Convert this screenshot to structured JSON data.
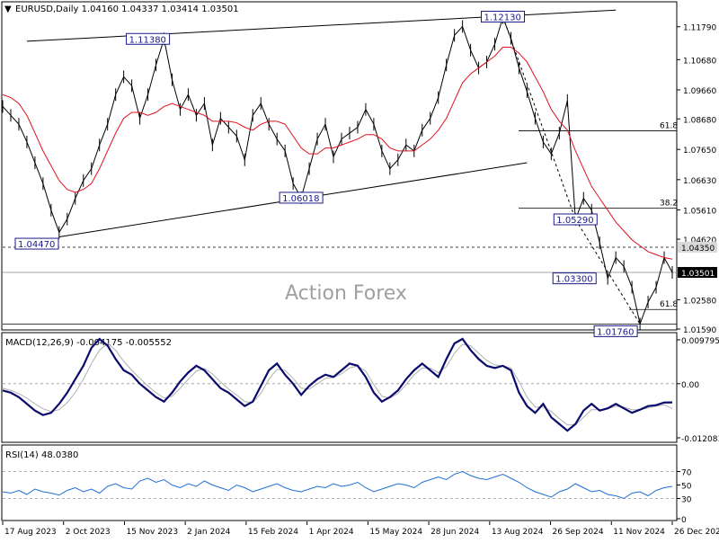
{
  "header": {
    "symbol_line": "EURUSD,Daily  1.04160 1.04337 1.03414 1.03501",
    "watermark": "Action Forex"
  },
  "colors": {
    "price": "#000000",
    "ma": "#e0101c",
    "macd_main": "#0b0b6e",
    "macd_signal": "#b0b0b0",
    "rsi": "#1f6fd6",
    "grid": "#9a9a9a"
  },
  "chart_data": [
    {
      "type": "line",
      "panel": "price",
      "title": "EURUSD,Daily  1.04160 1.04337 1.03414 1.03501",
      "ylim": [
        1.0159,
        1.1251
      ],
      "y_ticks": [
        1.1179,
        1.1068,
        1.0966,
        1.0868,
        1.0765,
        1.0663,
        1.0561,
        1.0462,
        1.0435,
        1.03501,
        1.0258,
        1.0159
      ],
      "y_tick_labels": [
        "1.11790",
        "1.10680",
        "1.09660",
        "1.08680",
        "1.07650",
        "1.06630",
        "1.05610",
        "1.04620",
        "1.04350",
        "1.03501",
        "1.02580",
        "1.01590"
      ],
      "x_labels": [
        "17 Aug 2023",
        "2 Oct 2023",
        "15 Nov 2023",
        "2 Jan 2024",
        "15 Feb 2024",
        "1 Apr 2024",
        "15 May 2024",
        "28 Jun 2024",
        "13 Aug 2024",
        "26 Sep 2024",
        "11 Nov 2024",
        "26 Dec 2024"
      ],
      "series": [
        {
          "name": "",
          "values": [
            1.091,
            1.088,
            1.085,
            1.079,
            1.072,
            1.065,
            1.056,
            1.0485,
            1.053,
            1.06,
            1.066,
            1.07,
            1.078,
            1.085,
            1.095,
            1.101,
            1.098,
            1.087,
            1.095,
            1.105,
            1.1138,
            1.1,
            1.09,
            1.095,
            1.088,
            1.092,
            1.078,
            1.087,
            1.084,
            1.081,
            1.073,
            1.088,
            1.092,
            1.085,
            1.08,
            1.076,
            1.065,
            1.0602,
            1.07,
            1.08,
            1.085,
            1.074,
            1.08,
            1.082,
            1.084,
            1.09,
            1.085,
            1.076,
            1.07,
            1.073,
            1.078,
            1.076,
            1.083,
            1.087,
            1.094,
            1.105,
            1.115,
            1.118,
            1.11,
            1.104,
            1.106,
            1.112,
            1.121,
            1.114,
            1.104,
            1.096,
            1.087,
            1.079,
            1.075,
            1.082,
            1.093,
            1.0529,
            1.06,
            1.056,
            1.045,
            1.033,
            1.04,
            1.037,
            1.03,
            1.0176,
            1.025,
            1.03,
            1.04,
            1.03501
          ]
        },
        {
          "name": "",
          "values": [
            1.095,
            1.094,
            1.092,
            1.088,
            1.082,
            1.076,
            1.071,
            1.066,
            1.063,
            1.062,
            1.063,
            1.065,
            1.07,
            1.076,
            1.082,
            1.087,
            1.089,
            1.089,
            1.088,
            1.089,
            1.091,
            1.092,
            1.091,
            1.09,
            1.089,
            1.088,
            1.086,
            1.086,
            1.086,
            1.0855,
            1.084,
            1.083,
            1.085,
            1.086,
            1.086,
            1.085,
            1.081,
            1.077,
            1.075,
            1.075,
            1.077,
            1.077,
            1.078,
            1.079,
            1.08,
            1.0815,
            1.0815,
            1.08,
            1.077,
            1.076,
            1.076,
            1.076,
            1.078,
            1.08,
            1.083,
            1.087,
            1.093,
            1.099,
            1.102,
            1.104,
            1.106,
            1.108,
            1.111,
            1.111,
            1.109,
            1.106,
            1.101,
            1.096,
            1.09,
            1.086,
            1.083,
            1.076,
            1.07,
            1.064,
            1.06,
            1.056,
            1.052,
            1.049,
            1.046,
            1.044,
            1.042,
            1.041,
            1.04,
            1.0395
          ]
        }
      ],
      "trendlines": [
        {
          "from": [
            3,
            1.113
          ],
          "to": [
            76,
            1.1235
          ]
        },
        {
          "from": [
            7,
            1.047
          ],
          "to": [
            65,
            1.072
          ]
        }
      ],
      "zigzag": [
        [
          62,
          1.1213
        ],
        [
          71,
          1.0529
        ],
        [
          79,
          1.0176
        ]
      ],
      "levels": [
        {
          "value": 1.0435,
          "style": "dashed"
        },
        {
          "value": 1.03501,
          "style": "solid"
        },
        {
          "value": 1.0176,
          "style": "solid"
        }
      ],
      "fibs": [
        {
          "label": "61.8",
          "value": 1.0828
        },
        {
          "label": "38.2",
          "value": 1.0567
        },
        {
          "label": "61.8",
          "value": 1.0225
        }
      ],
      "callouts": [
        {
          "label": "1.11380",
          "x": 18,
          "y": 1.1138
        },
        {
          "label": "1.12130",
          "x": 62,
          "y": 1.1213
        },
        {
          "label": "1.06018",
          "x": 37,
          "y": 1.0602
        },
        {
          "label": "1.04470",
          "x": 7,
          "y": 1.0447
        },
        {
          "label": "1.05290",
          "x": 71,
          "y": 1.0529
        },
        {
          "label": "1.03300",
          "x": 74,
          "y": 1.033
        },
        {
          "label": "1.01760",
          "x": 79,
          "y": 1.0176
        }
      ],
      "price_tags": [
        {
          "label": "1.04350",
          "value": 1.0435
        },
        {
          "label": "1.03501",
          "value": 1.03501
        }
      ]
    },
    {
      "type": "line",
      "panel": "macd",
      "title": "MACD(12,26,9) -0.004175 -0.005552",
      "ylim": [
        -0.012081,
        0.009795
      ],
      "y_ticks": [
        0.009795,
        0.0,
        -0.012081
      ],
      "y_tick_labels": [
        "0.009795",
        "0.00",
        "-0.012081"
      ],
      "series": [
        {
          "name": "",
          "values": [
            -0.0015,
            -0.002,
            -0.003,
            -0.0045,
            -0.006,
            -0.007,
            -0.0065,
            -0.0045,
            -0.002,
            0.001,
            0.004,
            0.008,
            0.01,
            0.0085,
            0.0055,
            0.003,
            0.002,
            0.0,
            -0.0015,
            -0.003,
            -0.004,
            -0.002,
            0.0005,
            0.0025,
            0.004,
            0.003,
            0.001,
            -0.001,
            -0.002,
            -0.0035,
            -0.005,
            -0.004,
            -0.0005,
            0.003,
            0.0045,
            0.002,
            0.0,
            -0.0025,
            -0.0005,
            0.001,
            0.002,
            0.0015,
            0.003,
            0.0045,
            0.004,
            0.0015,
            -0.002,
            -0.004,
            -0.003,
            -0.0015,
            0.001,
            0.003,
            0.0045,
            0.003,
            0.0015,
            0.0055,
            0.009,
            0.01,
            0.0075,
            0.0055,
            0.004,
            0.0035,
            0.004,
            0.003,
            -0.002,
            -0.005,
            -0.0065,
            -0.0045,
            -0.0075,
            -0.009,
            -0.0105,
            -0.009,
            -0.006,
            -0.0045,
            -0.006,
            -0.0055,
            -0.0045,
            -0.0055,
            -0.0065,
            -0.0058,
            -0.005,
            -0.0048,
            -0.0042,
            -0.004175
          ]
        },
        {
          "name": "",
          "values": [
            -0.001,
            -0.0015,
            -0.0022,
            -0.0032,
            -0.0045,
            -0.0056,
            -0.0062,
            -0.0058,
            -0.0042,
            -0.002,
            0.001,
            0.0045,
            0.0075,
            0.009,
            0.0075,
            0.005,
            0.003,
            0.0012,
            -0.0005,
            -0.002,
            -0.0032,
            -0.0028,
            -0.001,
            0.001,
            0.0028,
            0.0034,
            0.0022,
            0.0004,
            -0.0012,
            -0.0025,
            -0.004,
            -0.0042,
            -0.0022,
            0.001,
            0.0032,
            0.003,
            0.0012,
            -0.001,
            -0.0012,
            0.0,
            0.0012,
            0.0014,
            0.0022,
            0.0035,
            0.004,
            0.0028,
            -0.0002,
            -0.0028,
            -0.0032,
            -0.0022,
            -0.0002,
            0.002,
            0.0035,
            0.0035,
            0.0025,
            0.0038,
            0.0068,
            0.0088,
            0.0085,
            0.0068,
            0.0052,
            0.0042,
            0.004,
            0.0035,
            0.0005,
            -0.003,
            -0.0052,
            -0.0052,
            -0.0062,
            -0.0078,
            -0.0092,
            -0.0092,
            -0.0075,
            -0.0058,
            -0.0058,
            -0.0056,
            -0.005,
            -0.0052,
            -0.0058,
            -0.0058,
            -0.0054,
            -0.005,
            -0.0047,
            -0.005552
          ]
        }
      ]
    },
    {
      "type": "line",
      "panel": "rsi",
      "title": "RSI(14) 48.0380",
      "ylim": [
        0,
        100
      ],
      "y_ticks": [
        70,
        50,
        30,
        0
      ],
      "y_tick_labels": [
        "70",
        "50",
        "30",
        "0"
      ],
      "series": [
        {
          "name": "",
          "values": [
            40,
            38,
            42,
            36,
            44,
            40,
            38,
            35,
            42,
            46,
            40,
            44,
            38,
            48,
            52,
            46,
            44,
            56,
            60,
            54,
            58,
            50,
            46,
            52,
            48,
            56,
            50,
            46,
            42,
            50,
            46,
            40,
            44,
            48,
            52,
            46,
            42,
            40,
            44,
            48,
            46,
            52,
            48,
            50,
            54,
            46,
            40,
            44,
            48,
            52,
            50,
            46,
            54,
            58,
            62,
            58,
            66,
            70,
            64,
            60,
            58,
            62,
            66,
            60,
            54,
            46,
            40,
            36,
            32,
            40,
            44,
            52,
            46,
            40,
            42,
            36,
            34,
            30,
            38,
            40,
            34,
            42,
            46,
            48.038
          ]
        }
      ]
    }
  ]
}
